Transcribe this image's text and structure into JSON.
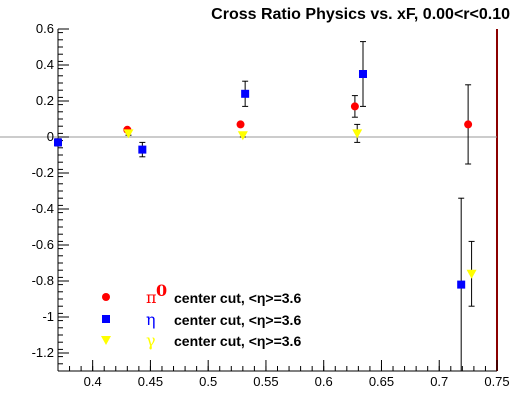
{
  "chart_data": {
    "type": "scatter",
    "title": "Cross Ratio Physics vs. xF, 0.00<r<0.10",
    "xlabel": "",
    "ylabel": "",
    "xlim": [
      0.37,
      0.75
    ],
    "ylim": [
      -1.3,
      0.6
    ],
    "x_ticks": [
      0.4,
      0.45,
      0.5,
      0.55,
      0.6,
      0.65,
      0.7,
      0.75
    ],
    "y_ticks": [
      -1.2,
      -1,
      -0.8,
      -0.6,
      -0.4,
      -0.2,
      0,
      0.2,
      0.4,
      0.6
    ],
    "x_tick_labels": [
      "0.4",
      "0.45",
      "0.5",
      "0.55",
      "0.6",
      "0.65",
      "0.7",
      "0.75"
    ],
    "y_tick_labels": [
      "-1.2",
      "-1",
      "-0.8",
      "-0.6",
      "-0.4",
      "-0.2",
      "0",
      "0.2",
      "0.4",
      "0.6"
    ],
    "reference_line": 0,
    "grid": false,
    "legend_position": "bottom-left",
    "series": [
      {
        "name": "π0",
        "marker": "circle",
        "color": "#ff0000",
        "points": [
          {
            "x": 0.43,
            "y": 0.04,
            "err": 0.01
          },
          {
            "x": 0.528,
            "y": 0.07,
            "err": 0.01
          },
          {
            "x": 0.627,
            "y": 0.17,
            "err": 0.06
          },
          {
            "x": 0.725,
            "y": 0.07,
            "err": 0.22
          }
        ]
      },
      {
        "name": "η",
        "marker": "square",
        "color": "#0000ff",
        "points": [
          {
            "x": 0.37,
            "y": -0.03,
            "err": 0.02
          },
          {
            "x": 0.443,
            "y": -0.07,
            "err": 0.04
          },
          {
            "x": 0.532,
            "y": 0.24,
            "err": 0.07
          },
          {
            "x": 0.634,
            "y": 0.35,
            "err": 0.18
          },
          {
            "x": 0.719,
            "y": -0.82,
            "err": 0.48
          }
        ]
      },
      {
        "name": "γ",
        "marker": "triangle-down",
        "color": "#ffff00",
        "points": [
          {
            "x": 0.431,
            "y": 0.02,
            "err": 0.01
          },
          {
            "x": 0.53,
            "y": 0.01,
            "err": 0.01
          },
          {
            "x": 0.629,
            "y": 0.02,
            "err": 0.05
          },
          {
            "x": 0.728,
            "y": -0.76,
            "err": 0.18
          }
        ]
      }
    ],
    "legend": [
      {
        "symbol": "π",
        "superscript": "0",
        "symbol_color": "#ff0000",
        "text": "center cut, <η>=3.6"
      },
      {
        "symbol": "η",
        "superscript": "",
        "symbol_color": "#0000ff",
        "text": "center cut, <η>=3.6"
      },
      {
        "symbol": "γ",
        "superscript": "",
        "symbol_color": "#ffff00",
        "text": "center cut, <η>=3.6"
      }
    ],
    "colors": {
      "frame_right": "#8b0000",
      "zero_line": "#999999"
    }
  }
}
